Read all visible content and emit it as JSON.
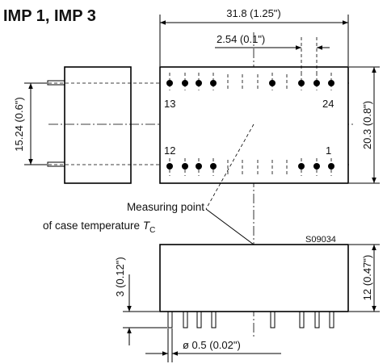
{
  "title": "IMP 1, IMP 3",
  "dimensions": {
    "width": "31.8 (1.25\")",
    "pitch": "2.54 (0.1\")",
    "height": "20.3 (0.8\")",
    "row_spacing": "15.24 (0.6\")",
    "body_height": "12 (0.47\")",
    "standoff": "3 (0.12\")",
    "pin_diameter": "ø 0.5 (0.02\")"
  },
  "pin_labels": {
    "top_left": "13",
    "top_right": "24",
    "bottom_left": "12",
    "bottom_right": "1"
  },
  "drawing_code": "S09034",
  "note": {
    "line1": "Measuring point",
    "line2_prefix": "of case temperature ",
    "symbol": "T",
    "subscript": "C"
  }
}
